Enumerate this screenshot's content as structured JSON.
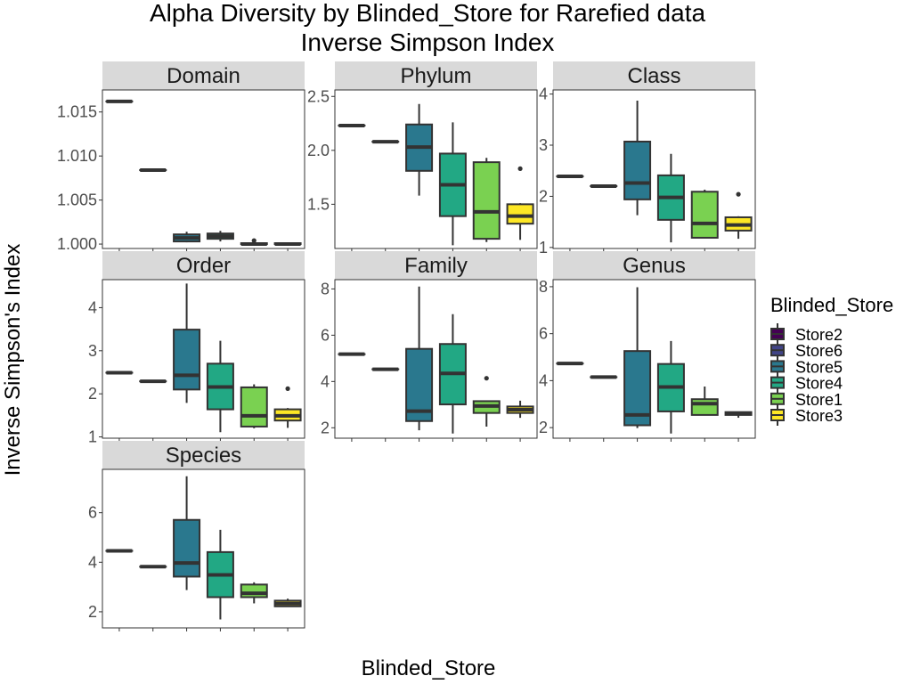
{
  "chart_data": {
    "type": "box",
    "title": "Alpha Diversity by Blinded_Store for Rarefied data",
    "subtitle": "Inverse Simpson Index",
    "xlabel": "Blinded_Store",
    "ylabel": "Inverse Simpson's Index",
    "legend_title": "Blinded_Store",
    "legend_position": "right",
    "grid": false,
    "groups": [
      {
        "name": "Store2",
        "color": "#440154"
      },
      {
        "name": "Store6",
        "color": "#414487"
      },
      {
        "name": "Store5",
        "color": "#2A788E"
      },
      {
        "name": "Store4",
        "color": "#22A884"
      },
      {
        "name": "Store1",
        "color": "#7AD151"
      },
      {
        "name": "Store3",
        "color": "#FDE725"
      }
    ],
    "panels": [
      {
        "name": "Domain",
        "ylim": [
          0.9995,
          1.0175
        ],
        "ticks": [
          {
            "v": 1.0,
            "l": "1.000"
          },
          {
            "v": 1.005,
            "l": "1.005"
          },
          {
            "v": 1.01,
            "l": "1.010"
          },
          {
            "v": 1.015,
            "l": "1.015"
          }
        ],
        "boxes": [
          {
            "group": "Store2",
            "min": 1.0162,
            "q1": 1.0162,
            "median": 1.0162,
            "q3": 1.0162,
            "max": 1.0162,
            "outliers": []
          },
          {
            "group": "Store6",
            "min": 1.0084,
            "q1": 1.0084,
            "median": 1.0084,
            "q3": 1.0084,
            "max": 1.0084,
            "outliers": []
          },
          {
            "group": "Store5",
            "min": 1.0002,
            "q1": 1.0003,
            "median": 1.0007,
            "q3": 1.0011,
            "max": 1.0014,
            "outliers": []
          },
          {
            "group": "Store4",
            "min": 1.0003,
            "q1": 1.0006,
            "median": 1.0009,
            "q3": 1.0012,
            "max": 1.0015,
            "outliers": []
          },
          {
            "group": "Store1",
            "min": 1.0,
            "q1": 1.0,
            "median": 1.0,
            "q3": 1.0001,
            "max": 1.0001,
            "outliers": [
              1.0004
            ]
          },
          {
            "group": "Store3",
            "min": 1.0,
            "q1": 1.0,
            "median": 1.0,
            "q3": 1.0001,
            "max": 1.0001,
            "outliers": []
          }
        ]
      },
      {
        "name": "Phylum",
        "ylim": [
          1.09,
          2.56
        ],
        "ticks": [
          {
            "v": 1.5,
            "l": "1.5"
          },
          {
            "v": 2.0,
            "l": "2.0"
          },
          {
            "v": 2.5,
            "l": "2.5"
          }
        ],
        "boxes": [
          {
            "group": "Store2",
            "min": 2.23,
            "q1": 2.23,
            "median": 2.23,
            "q3": 2.23,
            "max": 2.23,
            "outliers": []
          },
          {
            "group": "Store6",
            "min": 2.08,
            "q1": 2.08,
            "median": 2.08,
            "q3": 2.08,
            "max": 2.08,
            "outliers": []
          },
          {
            "group": "Store5",
            "min": 1.58,
            "q1": 1.81,
            "median": 2.03,
            "q3": 2.24,
            "max": 2.43,
            "outliers": []
          },
          {
            "group": "Store4",
            "min": 1.12,
            "q1": 1.39,
            "median": 1.68,
            "q3": 1.97,
            "max": 2.26,
            "outliers": []
          },
          {
            "group": "Store1",
            "min": 1.15,
            "q1": 1.18,
            "median": 1.43,
            "q3": 1.89,
            "max": 1.93,
            "outliers": []
          },
          {
            "group": "Store3",
            "min": 1.17,
            "q1": 1.32,
            "median": 1.39,
            "q3": 1.5,
            "max": 1.51,
            "outliers": [
              1.83
            ]
          }
        ]
      },
      {
        "name": "Class",
        "ylim": [
          0.98,
          4.08
        ],
        "ticks": [
          {
            "v": 1,
            "l": "1"
          },
          {
            "v": 2,
            "l": "2"
          },
          {
            "v": 3,
            "l": "3"
          },
          {
            "v": 4,
            "l": "4"
          }
        ],
        "boxes": [
          {
            "group": "Store2",
            "min": 2.39,
            "q1": 2.39,
            "median": 2.39,
            "q3": 2.39,
            "max": 2.39,
            "outliers": []
          },
          {
            "group": "Store6",
            "min": 2.2,
            "q1": 2.2,
            "median": 2.2,
            "q3": 2.2,
            "max": 2.2,
            "outliers": []
          },
          {
            "group": "Store5",
            "min": 1.63,
            "q1": 1.94,
            "median": 2.26,
            "q3": 3.07,
            "max": 3.87,
            "outliers": []
          },
          {
            "group": "Store4",
            "min": 1.1,
            "q1": 1.54,
            "median": 1.98,
            "q3": 2.41,
            "max": 2.83,
            "outliers": []
          },
          {
            "group": "Store1",
            "min": 1.18,
            "q1": 1.19,
            "median": 1.47,
            "q3": 2.09,
            "max": 2.13,
            "outliers": []
          },
          {
            "group": "Store3",
            "min": 1.17,
            "q1": 1.33,
            "median": 1.44,
            "q3": 1.59,
            "max": 1.61,
            "outliers": [
              2.04
            ]
          }
        ]
      },
      {
        "name": "Order",
        "ylim": [
          0.97,
          4.65
        ],
        "ticks": [
          {
            "v": 1,
            "l": "1"
          },
          {
            "v": 2,
            "l": "2"
          },
          {
            "v": 3,
            "l": "3"
          },
          {
            "v": 4,
            "l": "4"
          }
        ],
        "boxes": [
          {
            "group": "Store2",
            "min": 2.49,
            "q1": 2.49,
            "median": 2.49,
            "q3": 2.49,
            "max": 2.49,
            "outliers": []
          },
          {
            "group": "Store6",
            "min": 2.29,
            "q1": 2.29,
            "median": 2.29,
            "q3": 2.29,
            "max": 2.29,
            "outliers": []
          },
          {
            "group": "Store5",
            "min": 1.79,
            "q1": 2.1,
            "median": 2.43,
            "q3": 3.49,
            "max": 4.56,
            "outliers": []
          },
          {
            "group": "Store4",
            "min": 1.11,
            "q1": 1.64,
            "median": 2.16,
            "q3": 2.7,
            "max": 3.23,
            "outliers": []
          },
          {
            "group": "Store1",
            "min": 1.2,
            "q1": 1.24,
            "median": 1.49,
            "q3": 2.15,
            "max": 2.22,
            "outliers": []
          },
          {
            "group": "Store3",
            "min": 1.21,
            "q1": 1.38,
            "median": 1.49,
            "q3": 1.64,
            "max": 1.67,
            "outliers": [
              2.12
            ]
          }
        ]
      },
      {
        "name": "Family",
        "ylim": [
          1.55,
          8.4
        ],
        "ticks": [
          {
            "v": 2,
            "l": "2"
          },
          {
            "v": 4,
            "l": "4"
          },
          {
            "v": 6,
            "l": "6"
          },
          {
            "v": 8,
            "l": "8"
          }
        ],
        "boxes": [
          {
            "group": "Store2",
            "min": 5.18,
            "q1": 5.18,
            "median": 5.18,
            "q3": 5.18,
            "max": 5.18,
            "outliers": []
          },
          {
            "group": "Store6",
            "min": 4.53,
            "q1": 4.53,
            "median": 4.53,
            "q3": 4.53,
            "max": 4.53,
            "outliers": []
          },
          {
            "group": "Store5",
            "min": 1.89,
            "q1": 2.29,
            "median": 2.72,
            "q3": 5.41,
            "max": 8.1,
            "outliers": []
          },
          {
            "group": "Store4",
            "min": 1.75,
            "q1": 3.01,
            "median": 4.35,
            "q3": 5.62,
            "max": 6.91,
            "outliers": []
          },
          {
            "group": "Store1",
            "min": 2.05,
            "q1": 2.64,
            "median": 2.94,
            "q3": 3.15,
            "max": 3.18,
            "outliers": [
              4.14
            ]
          },
          {
            "group": "Store3",
            "min": 2.43,
            "q1": 2.64,
            "median": 2.78,
            "q3": 2.92,
            "max": 3.17,
            "outliers": []
          }
        ]
      },
      {
        "name": "Genus",
        "ylim": [
          1.55,
          8.3
        ],
        "ticks": [
          {
            "v": 2,
            "l": "2"
          },
          {
            "v": 4,
            "l": "4"
          },
          {
            "v": 6,
            "l": "6"
          },
          {
            "v": 8,
            "l": "8"
          }
        ],
        "boxes": [
          {
            "group": "Store2",
            "min": 4.73,
            "q1": 4.73,
            "median": 4.73,
            "q3": 4.73,
            "max": 4.73,
            "outliers": []
          },
          {
            "group": "Store6",
            "min": 4.15,
            "q1": 4.15,
            "median": 4.15,
            "q3": 4.15,
            "max": 4.15,
            "outliers": []
          },
          {
            "group": "Store5",
            "min": 1.98,
            "q1": 2.1,
            "median": 2.54,
            "q3": 5.26,
            "max": 7.98,
            "outliers": []
          },
          {
            "group": "Store4",
            "min": 1.75,
            "q1": 2.69,
            "median": 3.73,
            "q3": 4.71,
            "max": 5.69,
            "outliers": []
          },
          {
            "group": "Store1",
            "min": 2.54,
            "q1": 2.54,
            "median": 3.02,
            "q3": 3.21,
            "max": 3.75,
            "outliers": []
          },
          {
            "group": "Store3",
            "min": 2.42,
            "q1": 2.54,
            "median": 2.6,
            "q3": 2.66,
            "max": 2.68,
            "outliers": []
          }
        ]
      },
      {
        "name": "Species",
        "ylim": [
          1.35,
          7.75
        ],
        "ticks": [
          {
            "v": 2,
            "l": "2"
          },
          {
            "v": 4,
            "l": "4"
          },
          {
            "v": 6,
            "l": "6"
          }
        ],
        "boxes": [
          {
            "group": "Store2",
            "min": 4.46,
            "q1": 4.46,
            "median": 4.46,
            "q3": 4.46,
            "max": 4.46,
            "outliers": []
          },
          {
            "group": "Store6",
            "min": 3.82,
            "q1": 3.82,
            "median": 3.82,
            "q3": 3.82,
            "max": 3.82,
            "outliers": []
          },
          {
            "group": "Store5",
            "min": 2.88,
            "q1": 3.42,
            "median": 3.97,
            "q3": 5.71,
            "max": 7.47,
            "outliers": []
          },
          {
            "group": "Store4",
            "min": 1.69,
            "q1": 2.59,
            "median": 3.49,
            "q3": 4.41,
            "max": 5.31,
            "outliers": []
          },
          {
            "group": "Store1",
            "min": 2.34,
            "q1": 2.59,
            "median": 2.75,
            "q3": 3.1,
            "max": 3.19,
            "outliers": []
          },
          {
            "group": "Store3",
            "min": 2.2,
            "q1": 2.22,
            "median": 2.33,
            "q3": 2.45,
            "max": 2.53,
            "outliers": []
          }
        ]
      }
    ]
  }
}
